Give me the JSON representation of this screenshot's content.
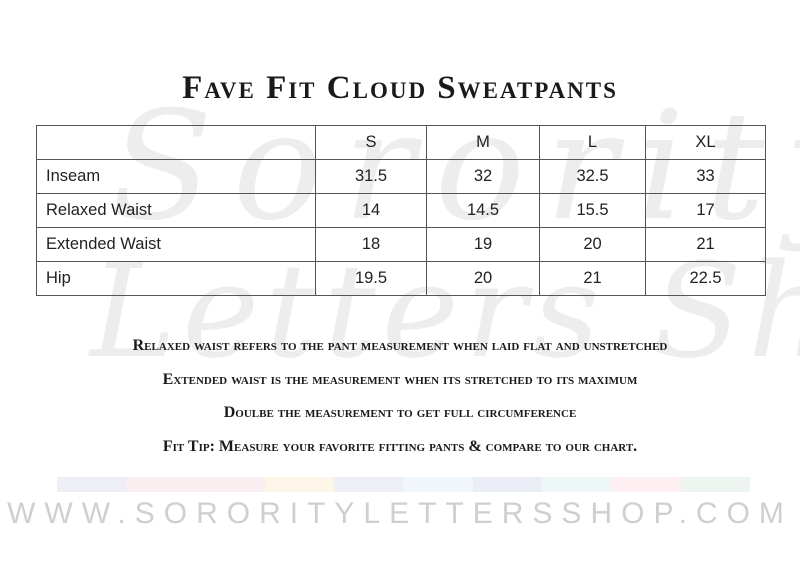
{
  "watermark": {
    "line1": "Sorority",
    "line2": "Letters Shop"
  },
  "title": "Fave Fit Cloud Sweatpants",
  "table": {
    "headers": [
      "",
      "S",
      "M",
      "L",
      "XL"
    ],
    "rows": [
      {
        "label": "Inseam",
        "values": [
          "31.5",
          "32",
          "32.5",
          "33"
        ]
      },
      {
        "label": "Relaxed Waist",
        "values": [
          "14",
          "14.5",
          "15.5",
          "17"
        ]
      },
      {
        "label": "Extended Waist",
        "values": [
          "18",
          "19",
          "20",
          "21"
        ]
      },
      {
        "label": "Hip",
        "values": [
          "19.5",
          "20",
          "21",
          "22.5"
        ]
      }
    ]
  },
  "notes": [
    "Relaxed waist refers to the pant measurement when laid flat and unstretched",
    "Extended waist is the measurement when its stretched to its maximum",
    "Doulbe the measurement to get full circumference",
    "Fit Tip:  Measure your favorite fitting pants & compare to our chart."
  ],
  "color_strip": [
    "#eeeef6",
    "#fbeef1",
    "#fbeef1",
    "#fdf6e8",
    "#eef0f5",
    "#f1f6fa",
    "#ebeef7",
    "#eef7f7",
    "#fdeff2",
    "#edf3ee"
  ],
  "footer": "WWW.SORORITYLETTERSSHOP.COM"
}
